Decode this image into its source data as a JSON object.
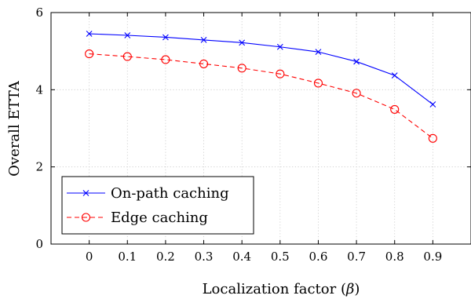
{
  "chart_data": {
    "type": "line",
    "xlabel": "Localization factor (β)",
    "ylabel": "Overall ETTA",
    "x": [
      0,
      0.1,
      0.2,
      0.3,
      0.4,
      0.5,
      0.6,
      0.7,
      0.8,
      0.9
    ],
    "x_tick_labels": [
      "0",
      "0.1",
      "0.2",
      "0.3",
      "0.4",
      "0.5",
      "0.6",
      "0.7",
      "0.8",
      "0.9"
    ],
    "xlim": [
      -0.1,
      1.0
    ],
    "ylim": [
      0,
      6
    ],
    "y_ticks": [
      0,
      2,
      4,
      6
    ],
    "y_tick_labels": [
      "0",
      "2",
      "4",
      "6"
    ],
    "grid": true,
    "legend_position": "bottom-left",
    "series": [
      {
        "name": "On-path caching",
        "color": "#0000ff",
        "marker": "x",
        "line_style": "solid",
        "values": [
          5.45,
          5.41,
          5.36,
          5.29,
          5.22,
          5.11,
          4.98,
          4.73,
          4.37,
          3.62
        ]
      },
      {
        "name": "Edge caching",
        "color": "#ff0000",
        "marker": "circle",
        "line_style": "dashed",
        "values": [
          4.93,
          4.86,
          4.78,
          4.67,
          4.56,
          4.41,
          4.17,
          3.91,
          3.49,
          2.74
        ]
      }
    ]
  }
}
